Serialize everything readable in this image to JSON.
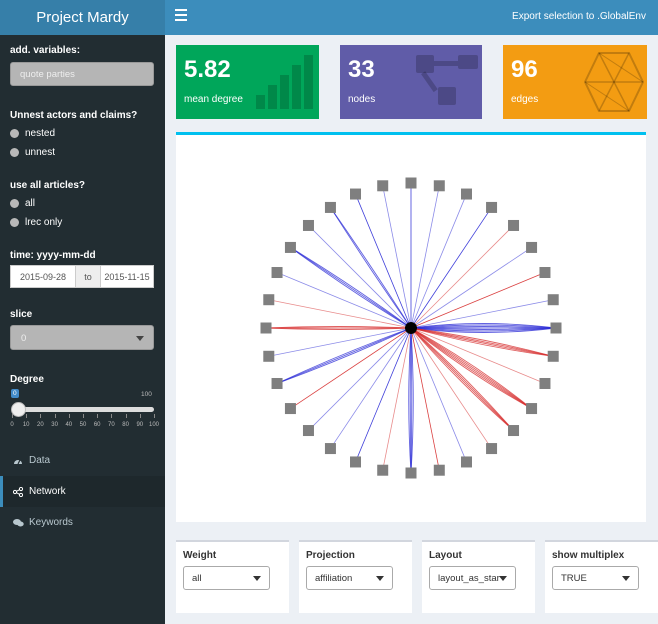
{
  "header": {
    "app_title": "Project Mardy",
    "export_label": "Export selection to .GlobalEnv"
  },
  "sidebar": {
    "variables_label": "add. variables:",
    "variables_values": "quote  parties",
    "unnest_label": "Unnest actors and claims?",
    "unnest_options": [
      "nested",
      "unnest"
    ],
    "articles_label": "use all articles?",
    "articles_options": [
      "all",
      "lrec only"
    ],
    "time_label": "time: yyyy-mm-dd",
    "date_start": "2015-09-28",
    "date_to": "to",
    "date_end": "2015-11-15",
    "slice_label": "slice",
    "slice_value": "0",
    "degree_label": "Degree",
    "degree": {
      "min": 0,
      "max": 100,
      "current_label": "0",
      "max_label": "100",
      "value": 0,
      "tick_labels": [
        "0",
        "10",
        "20",
        "30",
        "40",
        "50",
        "60",
        "70",
        "80",
        "90",
        "100"
      ]
    },
    "menu": [
      {
        "label": "Data",
        "icon": "dashboard-icon",
        "active": false
      },
      {
        "label": "Network",
        "icon": "share-alt-icon",
        "active": true
      },
      {
        "label": "Keywords",
        "icon": "comments-icon",
        "active": false
      }
    ]
  },
  "value_boxes": [
    {
      "value": "5.82",
      "subtitle": "mean degree",
      "color": "#00a65a",
      "icon": "bar-chart-icon"
    },
    {
      "value": "33",
      "subtitle": "nodes",
      "color": "#605ca8",
      "icon": "sitemap-icon"
    },
    {
      "value": "96",
      "subtitle": "edges",
      "color": "#f39c12",
      "icon": "connectdevelop-icon"
    }
  ],
  "network_plot": {
    "hub_color": "#000000",
    "node_color": "#7f7f7f",
    "edge_colors": {
      "blue": "#2b2bd6",
      "red": "#d62b2b"
    },
    "peripheral_node_count": 32
  },
  "controls": [
    {
      "label": "Weight",
      "value": "all"
    },
    {
      "label": "Projection",
      "value": "affiliation"
    },
    {
      "label": "Layout",
      "value": "layout_as_star"
    },
    {
      "label": "show multiplex",
      "value": "TRUE"
    }
  ],
  "colors": {
    "header_dark": "#367fa9",
    "header": "#3c8dbc",
    "sidebar": "#222d32",
    "accent_box_border": "#00c0ef"
  }
}
